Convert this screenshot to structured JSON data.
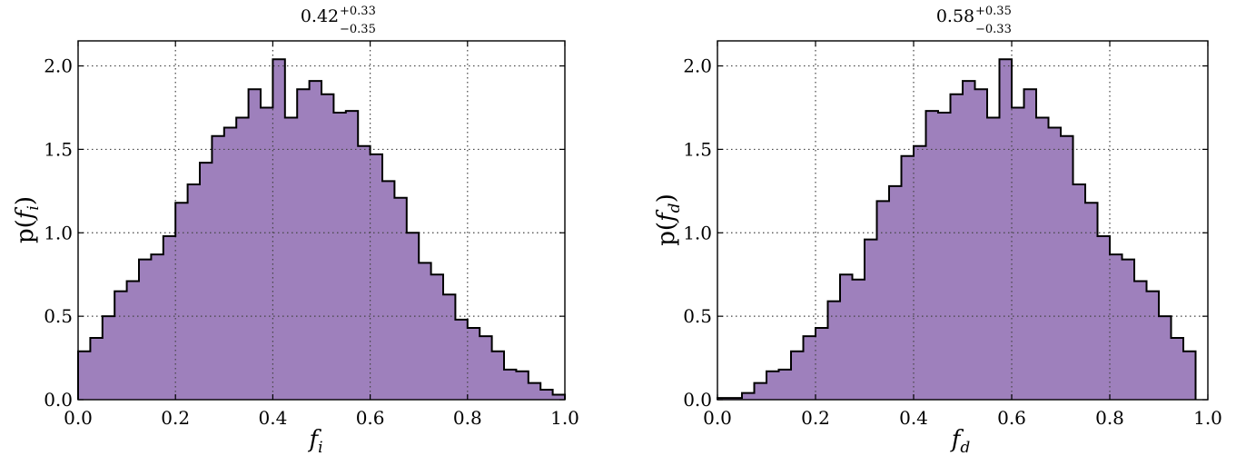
{
  "chart_data": [
    {
      "type": "histogram",
      "title_value": "0.42",
      "title_plus": "+0.33",
      "title_minus": "−0.35",
      "xlabel_base": "f",
      "xlabel_sub": "i",
      "ylabel_pre": "p(",
      "ylabel_base": "f",
      "ylabel_sub": "i",
      "ylabel_post": ")",
      "xlim": [
        0,
        1
      ],
      "ylim": [
        0,
        2.15
      ],
      "xticks": [
        0.0,
        0.2,
        0.4,
        0.6,
        0.8,
        1.0
      ],
      "xtick_labels": [
        "0.0",
        "0.2",
        "0.4",
        "0.6",
        "0.8",
        "1.0"
      ],
      "yticks": [
        0.0,
        0.5,
        1.0,
        1.5,
        2.0
      ],
      "ytick_labels": [
        "0.0",
        "0.5",
        "1.0",
        "1.5",
        "2.0"
      ],
      "grid": true,
      "bin_width": 0.025,
      "bin_start": 0.0,
      "values": [
        0.29,
        0.37,
        0.5,
        0.65,
        0.71,
        0.84,
        0.87,
        0.98,
        1.18,
        1.29,
        1.42,
        1.58,
        1.63,
        1.69,
        1.86,
        1.75,
        2.04,
        1.69,
        1.86,
        1.91,
        1.83,
        1.72,
        1.73,
        1.52,
        1.47,
        1.31,
        1.21,
        1.0,
        0.82,
        0.75,
        0.63,
        0.48,
        0.43,
        0.38,
        0.29,
        0.18,
        0.17,
        0.1,
        0.06,
        0.03,
        0.01
      ]
    },
    {
      "type": "histogram",
      "title_value": "0.58",
      "title_plus": "+0.35",
      "title_minus": "−0.33",
      "xlabel_base": "f",
      "xlabel_sub": "d",
      "ylabel_pre": "p(",
      "ylabel_base": "f",
      "ylabel_sub": "d",
      "ylabel_post": ")",
      "xlim": [
        0,
        1
      ],
      "ylim": [
        0,
        2.15
      ],
      "xticks": [
        0.0,
        0.2,
        0.4,
        0.6,
        0.8,
        1.0
      ],
      "xtick_labels": [
        "0.0",
        "0.2",
        "0.4",
        "0.6",
        "0.8",
        "1.0"
      ],
      "yticks": [
        0.0,
        0.5,
        1.0,
        1.5,
        2.0
      ],
      "ytick_labels": [
        "0.0",
        "0.5",
        "1.0",
        "1.5",
        "2.0"
      ],
      "grid": true,
      "bin_width": 0.025,
      "bin_start": 0.0,
      "values": [
        0.01,
        0.01,
        0.04,
        0.1,
        0.17,
        0.18,
        0.29,
        0.38,
        0.43,
        0.59,
        0.75,
        0.72,
        0.96,
        1.19,
        1.28,
        1.46,
        1.52,
        1.73,
        1.72,
        1.83,
        1.91,
        1.86,
        1.69,
        2.04,
        1.75,
        1.86,
        1.69,
        1.63,
        1.58,
        1.29,
        1.18,
        0.98,
        0.87,
        0.84,
        0.71,
        0.65,
        0.5,
        0.37,
        0.29
      ]
    }
  ],
  "colors": {
    "fill": "#9e80bc",
    "edge": "#000000",
    "grid": "#444444"
  }
}
